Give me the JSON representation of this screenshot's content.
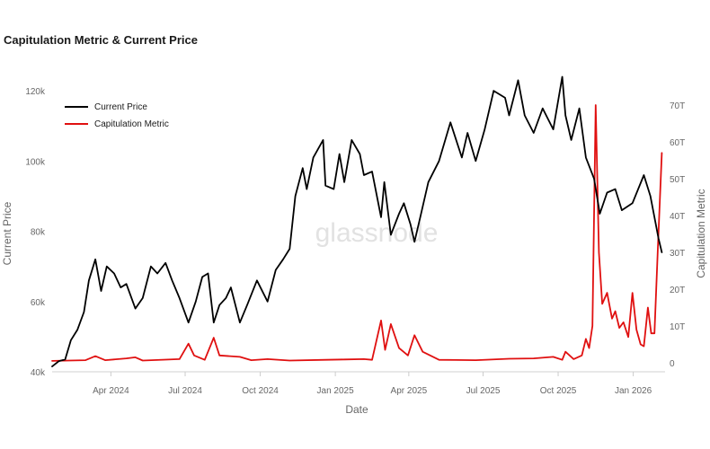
{
  "title": "Capitulation Metric & Current Price",
  "watermark": "glassnode",
  "chart_data": {
    "type": "line",
    "title": "Capitulation Metric & Current Price",
    "xlabel": "Date",
    "ylabel_left": "Current Price",
    "ylabel_right": "Capitulation Metric",
    "x_ticks": [
      "Apr 2024",
      "Jul 2024",
      "Oct 2024",
      "Jan 2025",
      "Apr 2025",
      "Jul 2025",
      "Oct 2025",
      "Jan 2026"
    ],
    "y_left_ticks": [
      "40k",
      "60k",
      "80k",
      "100k",
      "120k"
    ],
    "y_right_ticks": [
      "0",
      "10T",
      "20T",
      "30T",
      "40T",
      "50T",
      "60T",
      "70T"
    ],
    "ylim_left": [
      40000,
      130000
    ],
    "ylim_right": [
      0,
      70
    ],
    "xlim": [
      "2024-01-20",
      "2026-02-09"
    ],
    "legend_position": "top-left",
    "grid": false,
    "series": [
      {
        "name": "Current Price",
        "axis": "left",
        "color": "#000000",
        "points": [
          [
            "2024-01-20",
            41500
          ],
          [
            "2024-01-28",
            43000
          ],
          [
            "2024-02-05",
            43500
          ],
          [
            "2024-02-12",
            49000
          ],
          [
            "2024-02-20",
            52000
          ],
          [
            "2024-02-28",
            57000
          ],
          [
            "2024-03-05",
            66000
          ],
          [
            "2024-03-13",
            72000
          ],
          [
            "2024-03-20",
            63000
          ],
          [
            "2024-03-27",
            70000
          ],
          [
            "2024-04-05",
            68000
          ],
          [
            "2024-04-13",
            64000
          ],
          [
            "2024-04-20",
            65000
          ],
          [
            "2024-05-01",
            58000
          ],
          [
            "2024-05-10",
            61000
          ],
          [
            "2024-05-20",
            70000
          ],
          [
            "2024-05-28",
            68000
          ],
          [
            "2024-06-07",
            71000
          ],
          [
            "2024-06-15",
            66000
          ],
          [
            "2024-06-24",
            61000
          ],
          [
            "2024-07-05",
            54000
          ],
          [
            "2024-07-14",
            60000
          ],
          [
            "2024-07-22",
            67000
          ],
          [
            "2024-07-29",
            68000
          ],
          [
            "2024-08-05",
            54000
          ],
          [
            "2024-08-12",
            59000
          ],
          [
            "2024-08-20",
            61000
          ],
          [
            "2024-08-26",
            64000
          ],
          [
            "2024-09-06",
            54000
          ],
          [
            "2024-09-15",
            59000
          ],
          [
            "2024-09-27",
            66000
          ],
          [
            "2024-10-10",
            60000
          ],
          [
            "2024-10-20",
            69000
          ],
          [
            "2024-10-29",
            72000
          ],
          [
            "2024-11-06",
            75000
          ],
          [
            "2024-11-13",
            90000
          ],
          [
            "2024-11-22",
            98000
          ],
          [
            "2024-11-27",
            92000
          ],
          [
            "2024-12-05",
            101000
          ],
          [
            "2024-12-17",
            106000
          ],
          [
            "2024-12-20",
            93000
          ],
          [
            "2024-12-30",
            92000
          ],
          [
            "2025-01-06",
            102000
          ],
          [
            "2025-01-12",
            94000
          ],
          [
            "2025-01-21",
            106000
          ],
          [
            "2025-01-31",
            102000
          ],
          [
            "2025-02-05",
            96000
          ],
          [
            "2025-02-15",
            97000
          ],
          [
            "2025-02-26",
            84000
          ],
          [
            "2025-03-02",
            94000
          ],
          [
            "2025-03-10",
            79000
          ],
          [
            "2025-03-20",
            85000
          ],
          [
            "2025-03-26",
            88000
          ],
          [
            "2025-04-03",
            82000
          ],
          [
            "2025-04-08",
            77000
          ],
          [
            "2025-04-15",
            84000
          ],
          [
            "2025-04-25",
            94000
          ],
          [
            "2025-05-08",
            100000
          ],
          [
            "2025-05-22",
            111000
          ],
          [
            "2025-06-05",
            101000
          ],
          [
            "2025-06-12",
            108000
          ],
          [
            "2025-06-22",
            100000
          ],
          [
            "2025-07-03",
            109000
          ],
          [
            "2025-07-14",
            120000
          ],
          [
            "2025-07-28",
            118000
          ],
          [
            "2025-08-02",
            113000
          ],
          [
            "2025-08-13",
            123000
          ],
          [
            "2025-08-21",
            113000
          ],
          [
            "2025-09-01",
            108000
          ],
          [
            "2025-09-12",
            115000
          ],
          [
            "2025-09-25",
            109000
          ],
          [
            "2025-10-06",
            124000
          ],
          [
            "2025-10-10",
            113000
          ],
          [
            "2025-10-17",
            106000
          ],
          [
            "2025-10-27",
            115000
          ],
          [
            "2025-11-04",
            101000
          ],
          [
            "2025-11-14",
            95000
          ],
          [
            "2025-11-21",
            85000
          ],
          [
            "2025-11-30",
            91000
          ],
          [
            "2025-12-10",
            92000
          ],
          [
            "2025-12-18",
            86000
          ],
          [
            "2025-12-31",
            88000
          ],
          [
            "2026-01-14",
            96000
          ],
          [
            "2026-01-22",
            90000
          ],
          [
            "2026-02-01",
            78000
          ],
          [
            "2026-02-05",
            74000
          ]
        ]
      },
      {
        "name": "Capitulation Metric",
        "axis": "right",
        "color": "#e01010",
        "points": [
          [
            "2024-01-20",
            0.5
          ],
          [
            "2024-03-01",
            0.7
          ],
          [
            "2024-03-13",
            1.8
          ],
          [
            "2024-03-25",
            0.7
          ],
          [
            "2024-04-20",
            1.2
          ],
          [
            "2024-05-01",
            1.5
          ],
          [
            "2024-05-10",
            0.6
          ],
          [
            "2024-06-24",
            1.0
          ],
          [
            "2024-07-05",
            5.2
          ],
          [
            "2024-07-12",
            2.0
          ],
          [
            "2024-07-25",
            0.8
          ],
          [
            "2024-08-05",
            6.8
          ],
          [
            "2024-08-12",
            2.0
          ],
          [
            "2024-09-06",
            1.6
          ],
          [
            "2024-09-20",
            0.7
          ],
          [
            "2024-10-10",
            1.0
          ],
          [
            "2024-11-06",
            0.6
          ],
          [
            "2024-12-20",
            0.8
          ],
          [
            "2025-01-12",
            0.9
          ],
          [
            "2025-02-05",
            1.0
          ],
          [
            "2025-02-15",
            0.8
          ],
          [
            "2025-02-26",
            11.5
          ],
          [
            "2025-03-03",
            3.5
          ],
          [
            "2025-03-10",
            10.5
          ],
          [
            "2025-03-20",
            4.0
          ],
          [
            "2025-03-31",
            2.0
          ],
          [
            "2025-04-08",
            7.5
          ],
          [
            "2025-04-18",
            3.0
          ],
          [
            "2025-05-08",
            0.8
          ],
          [
            "2025-06-22",
            0.7
          ],
          [
            "2025-08-02",
            1.1
          ],
          [
            "2025-09-01",
            1.2
          ],
          [
            "2025-09-25",
            1.6
          ],
          [
            "2025-10-06",
            0.8
          ],
          [
            "2025-10-10",
            3.0
          ],
          [
            "2025-10-20",
            1.0
          ],
          [
            "2025-10-30",
            2.0
          ],
          [
            "2025-11-04",
            6.5
          ],
          [
            "2025-11-08",
            4.0
          ],
          [
            "2025-11-12",
            10.0
          ],
          [
            "2025-11-14",
            40.0
          ],
          [
            "2025-11-16",
            70.0
          ],
          [
            "2025-11-20",
            30.0
          ],
          [
            "2025-11-24",
            16.0
          ],
          [
            "2025-11-30",
            19.0
          ],
          [
            "2025-12-06",
            12.0
          ],
          [
            "2025-12-10",
            14.0
          ],
          [
            "2025-12-15",
            9.5
          ],
          [
            "2025-12-20",
            11.0
          ],
          [
            "2025-12-26",
            7.0
          ],
          [
            "2025-12-31",
            19.0
          ],
          [
            "2026-01-05",
            9.0
          ],
          [
            "2026-01-10",
            5.0
          ],
          [
            "2026-01-14",
            4.5
          ],
          [
            "2026-01-19",
            15.0
          ],
          [
            "2026-01-23",
            8.0
          ],
          [
            "2026-01-27",
            8.0
          ],
          [
            "2026-01-31",
            30.0
          ],
          [
            "2026-02-05",
            57.0
          ]
        ]
      }
    ]
  }
}
